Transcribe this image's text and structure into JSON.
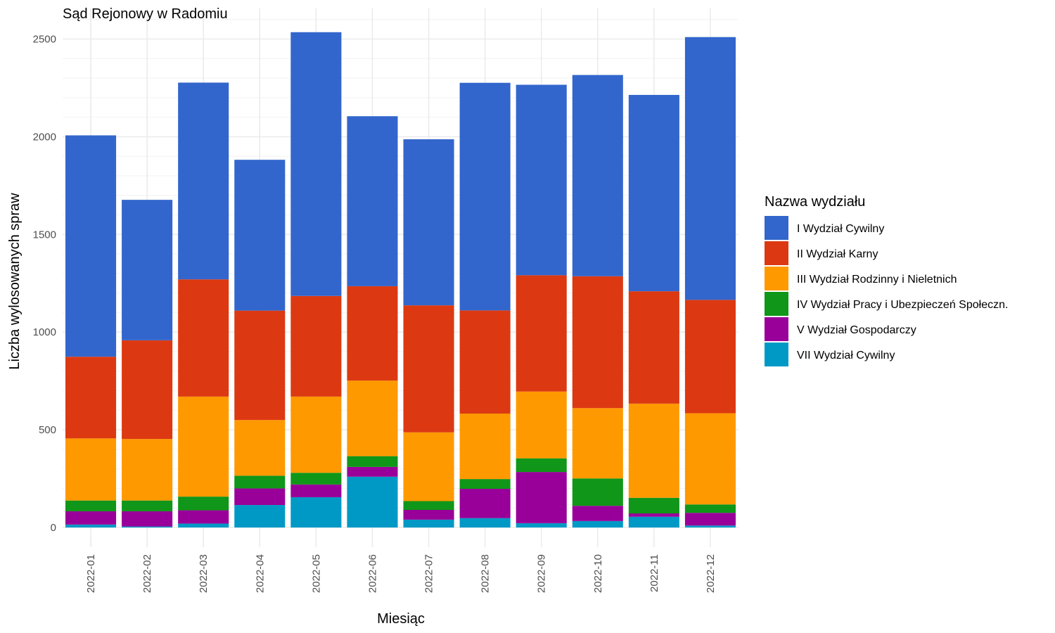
{
  "chart_data": {
    "type": "bar",
    "stacked": true,
    "title": "Sąd Rejonowy w Radomiu",
    "xlabel": "Miesiąc",
    "ylabel": "Liczba wylosowanych spraw",
    "ylim": [
      0,
      2600
    ],
    "yticks": [
      0,
      500,
      1000,
      1500,
      2000,
      2500
    ],
    "grid": true,
    "legend_title": "Nazwa wydziału",
    "legend_position": "right",
    "categories": [
      "2022-01",
      "2022-02",
      "2022-03",
      "2022-04",
      "2022-05",
      "2022-06",
      "2022-07",
      "2022-08",
      "2022-09",
      "2022-10",
      "2022-11",
      "2022-12"
    ],
    "series": [
      {
        "name": "VII Wydział Cywilny",
        "color": "#0099c6",
        "values": [
          15,
          5,
          20,
          115,
          155,
          260,
          40,
          48,
          22,
          33,
          55,
          10
        ]
      },
      {
        "name": "V Wydział Gospodarczy",
        "color": "#990099",
        "values": [
          68,
          78,
          68,
          85,
          65,
          50,
          50,
          150,
          262,
          78,
          17,
          65
        ]
      },
      {
        "name": "IV Wydział Pracy i Ubezpieczeń Społeczn.",
        "color": "#109618",
        "values": [
          55,
          55,
          70,
          65,
          60,
          55,
          45,
          50,
          70,
          140,
          80,
          43
        ]
      },
      {
        "name": "III Wydział Rodzinny i Nieletnich",
        "color": "#ff9900",
        "values": [
          318,
          315,
          512,
          285,
          390,
          387,
          352,
          335,
          342,
          360,
          482,
          467
        ]
      },
      {
        "name": "II Wydział Karny",
        "color": "#dc3912",
        "values": [
          418,
          505,
          600,
          560,
          515,
          483,
          650,
          528,
          595,
          675,
          575,
          580
        ]
      },
      {
        "name": "I Wydział Cywilny",
        "color": "#3366cc",
        "values": [
          1133,
          719,
          1007,
          772,
          1350,
          870,
          850,
          1165,
          975,
          1030,
          1005,
          1345
        ]
      }
    ]
  }
}
